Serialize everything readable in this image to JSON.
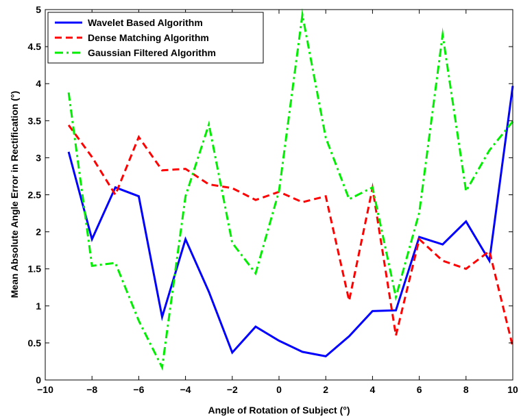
{
  "chart_data": {
    "type": "line",
    "title": "",
    "xlabel": "Angle of Rotation of Subject (°)",
    "ylabel": "Mean Absolute Angle Error in Rectification (°)",
    "xlim": [
      -10,
      10
    ],
    "ylim": [
      0,
      5
    ],
    "xticks": [
      -10,
      -8,
      -6,
      -4,
      -2,
      0,
      2,
      4,
      6,
      8,
      10
    ],
    "yticks": [
      0,
      0.5,
      1,
      1.5,
      2,
      2.5,
      3,
      3.5,
      4,
      4.5,
      5
    ],
    "xtick_labels": [
      "−10",
      "−8",
      "−6",
      "−4",
      "−2",
      "0",
      "2",
      "4",
      "6",
      "8",
      "10"
    ],
    "ytick_labels": [
      "0",
      "0.5",
      "1",
      "1.5",
      "2",
      "2.5",
      "3",
      "3.5",
      "4",
      "4.5",
      "5"
    ],
    "grid": false,
    "legend_position": "top-left",
    "x": [
      -9,
      -8,
      -7,
      -6,
      -5,
      -4,
      -3,
      -2,
      -1,
      0,
      1,
      2,
      3,
      4,
      5,
      6,
      7,
      8,
      9,
      10
    ],
    "series": [
      {
        "name": "Wavelet Based Algorithm",
        "color": "#0000ff",
        "style": "solid",
        "values": [
          3.08,
          1.9,
          2.6,
          2.48,
          0.85,
          1.9,
          1.19,
          0.37,
          0.72,
          0.53,
          0.38,
          0.32,
          0.59,
          0.93,
          0.94,
          1.93,
          1.83,
          2.14,
          1.61,
          3.97
        ]
      },
      {
        "name": "Dense Matching Algorithm",
        "color": "#ff0000",
        "style": "dashed",
        "values": [
          3.44,
          3.01,
          2.5,
          3.28,
          2.83,
          2.85,
          2.64,
          2.59,
          2.43,
          2.54,
          2.4,
          2.48,
          1.07,
          2.59,
          0.6,
          1.9,
          1.61,
          1.5,
          1.74,
          0.45
        ]
      },
      {
        "name": "Gaussian Filtered Algorithm",
        "color": "#00ee00",
        "style": "dashdot",
        "values": [
          3.88,
          1.54,
          1.58,
          0.8,
          0.17,
          2.48,
          3.45,
          1.85,
          1.44,
          2.55,
          4.93,
          3.27,
          2.44,
          2.6,
          1.12,
          2.26,
          4.66,
          2.55,
          3.1,
          3.49
        ]
      }
    ]
  }
}
